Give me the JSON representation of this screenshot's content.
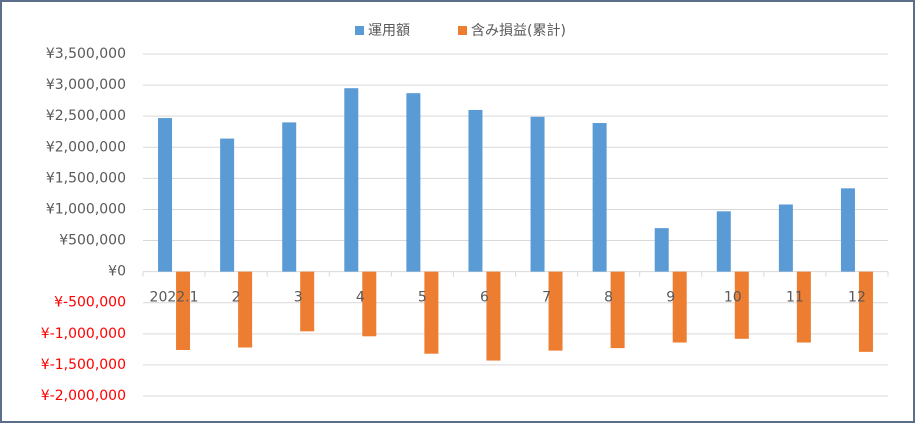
{
  "chart_data": {
    "type": "bar",
    "categories": [
      "2022.1",
      "2",
      "3",
      "4",
      "5",
      "6",
      "7",
      "8",
      "9",
      "10",
      "11",
      "12"
    ],
    "series": [
      {
        "name": "運用額",
        "color": "#5b9bd5",
        "values": [
          2470000,
          2140000,
          2400000,
          2950000,
          2870000,
          2600000,
          2490000,
          2390000,
          700000,
          970000,
          1080000,
          1340000
        ]
      },
      {
        "name": "含み損益(累計)",
        "color": "#ed7d31",
        "values": [
          -1260000,
          -1220000,
          -960000,
          -1040000,
          -1320000,
          -1430000,
          -1270000,
          -1230000,
          -1140000,
          -1080000,
          -1140000,
          -1290000
        ]
      }
    ],
    "ylim": [
      -2000000,
      3500000
    ],
    "yticks": [
      {
        "value": -2000000,
        "label": "¥-2,000,000"
      },
      {
        "value": -1500000,
        "label": "¥-1,500,000"
      },
      {
        "value": -1000000,
        "label": "¥-1,000,000"
      },
      {
        "value": -500000,
        "label": "¥-500,000"
      },
      {
        "value": 0,
        "label": "¥0"
      },
      {
        "value": 500000,
        "label": "¥500,000"
      },
      {
        "value": 1000000,
        "label": "¥1,000,000"
      },
      {
        "value": 1500000,
        "label": "¥1,500,000"
      },
      {
        "value": 2000000,
        "label": "¥2,000,000"
      },
      {
        "value": 2500000,
        "label": "¥2,500,000"
      },
      {
        "value": 3000000,
        "label": "¥3,000,000"
      },
      {
        "value": 3500000,
        "label": "¥3,500,000"
      }
    ],
    "negative_tick_color": "#ff0000",
    "grid": true,
    "legend": "top"
  }
}
